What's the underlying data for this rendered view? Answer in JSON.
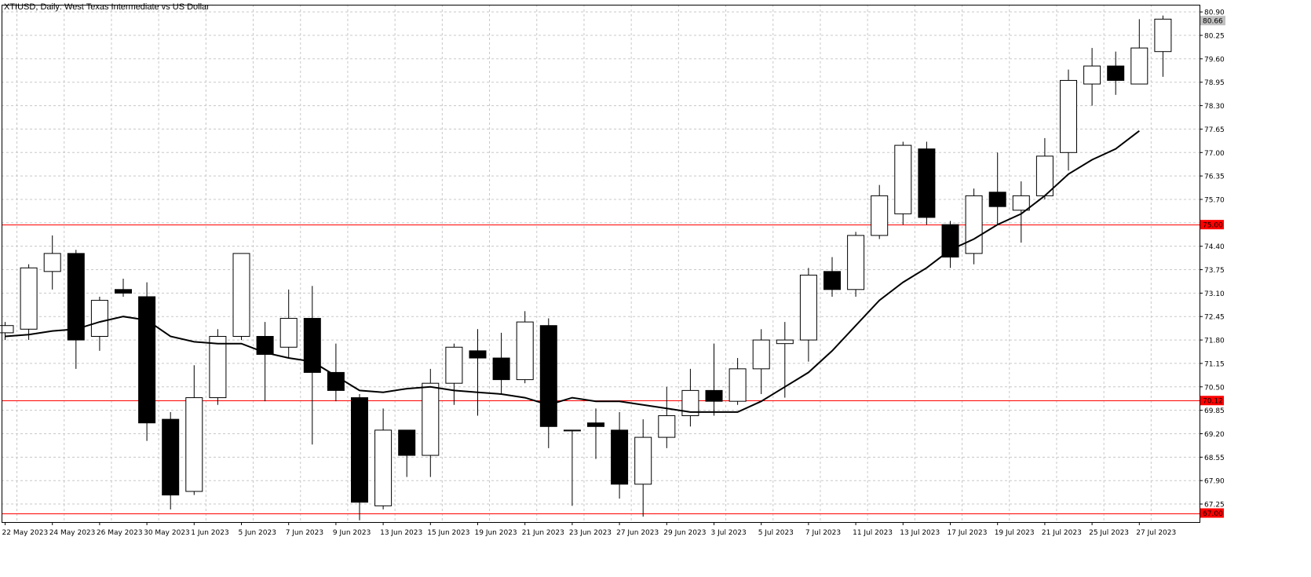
{
  "chart_data": {
    "type": "candlestick",
    "title": "XTIUSD, Daily:  West Texas Intermediate vs US Dollar",
    "price_ticks": [
      "80.90",
      "80.25",
      "79.60",
      "78.95",
      "78.30",
      "77.65",
      "77.00",
      "76.35",
      "75.70",
      "75.05",
      "74.40",
      "73.75",
      "73.10",
      "72.45",
      "71.80",
      "71.15",
      "70.50",
      "69.85",
      "69.20",
      "68.55",
      "67.90",
      "67.25"
    ],
    "ylim": [
      66.75,
      81.1
    ],
    "current_price": "80.66",
    "levels": [
      {
        "value": 75.0,
        "label": "75.00"
      },
      {
        "value": 70.12,
        "label": "70.12"
      },
      {
        "value": 67.0,
        "label": "67.00"
      }
    ],
    "x_labels": [
      "22 May 2023",
      "24 May 2023",
      "26 May 2023",
      "30 May 2023",
      "1 Jun 2023",
      "5 Jun 2023",
      "7 Jun 2023",
      "9 Jun 2023",
      "13 Jun 2023",
      "15 Jun 2023",
      "19 Jun 2023",
      "21 Jun 2023",
      "23 Jun 2023",
      "27 Jun 2023",
      "29 Jun 2023",
      "3 Jul 2023",
      "5 Jul 2023",
      "7 Jul 2023",
      "11 Jul 2023",
      "13 Jul 2023",
      "17 Jul 2023",
      "19 Jul 2023",
      "21 Jul 2023",
      "25 Jul 2023",
      "27 Jul 2023"
    ],
    "candles": [
      {
        "open": 72.0,
        "high": 72.3,
        "low": 71.8,
        "close": 72.2
      },
      {
        "open": 72.1,
        "high": 73.9,
        "low": 71.8,
        "close": 73.8
      },
      {
        "open": 73.7,
        "high": 74.7,
        "low": 73.2,
        "close": 74.2
      },
      {
        "open": 74.2,
        "high": 74.3,
        "low": 71.0,
        "close": 71.8
      },
      {
        "open": 71.9,
        "high": 73.0,
        "low": 71.5,
        "close": 72.9
      },
      {
        "open": 73.2,
        "high": 73.5,
        "low": 73.0,
        "close": 73.1
      },
      {
        "open": 73.0,
        "high": 73.4,
        "low": 69.0,
        "close": 69.5
      },
      {
        "open": 69.6,
        "high": 69.8,
        "low": 67.1,
        "close": 67.5
      },
      {
        "open": 67.6,
        "high": 71.1,
        "low": 67.5,
        "close": 70.2
      },
      {
        "open": 70.2,
        "high": 72.1,
        "low": 70.0,
        "close": 71.9
      },
      {
        "open": 71.9,
        "high": 74.2,
        "low": 71.8,
        "close": 74.2
      },
      {
        "open": 71.9,
        "high": 72.3,
        "low": 70.1,
        "close": 71.4
      },
      {
        "open": 71.6,
        "high": 73.2,
        "low": 71.3,
        "close": 72.4
      },
      {
        "open": 72.4,
        "high": 73.3,
        "low": 68.9,
        "close": 70.9
      },
      {
        "open": 70.9,
        "high": 71.7,
        "low": 70.1,
        "close": 70.4
      },
      {
        "open": 70.2,
        "high": 70.3,
        "low": 66.8,
        "close": 67.3
      },
      {
        "open": 67.2,
        "high": 69.9,
        "low": 67.1,
        "close": 69.3
      },
      {
        "open": 69.3,
        "high": 69.3,
        "low": 68.0,
        "close": 68.6
      },
      {
        "open": 68.6,
        "high": 71.0,
        "low": 68.0,
        "close": 70.6
      },
      {
        "open": 70.6,
        "high": 71.7,
        "low": 70.0,
        "close": 71.6
      },
      {
        "open": 71.5,
        "high": 72.1,
        "low": 69.7,
        "close": 71.3
      },
      {
        "open": 71.3,
        "high": 72.0,
        "low": 70.3,
        "close": 70.7
      },
      {
        "open": 70.7,
        "high": 72.6,
        "low": 70.6,
        "close": 72.3
      },
      {
        "open": 72.2,
        "high": 72.4,
        "low": 68.8,
        "close": 69.4
      },
      {
        "open": 69.3,
        "high": 69.3,
        "low": 67.2,
        "close": 69.3
      },
      {
        "open": 69.5,
        "high": 69.9,
        "low": 68.5,
        "close": 69.4
      },
      {
        "open": 69.3,
        "high": 69.8,
        "low": 67.4,
        "close": 67.8
      },
      {
        "open": 67.8,
        "high": 69.6,
        "low": 66.9,
        "close": 69.1
      },
      {
        "open": 69.1,
        "high": 70.5,
        "low": 68.8,
        "close": 69.7
      },
      {
        "open": 69.7,
        "high": 71.0,
        "low": 69.4,
        "close": 70.4
      },
      {
        "open": 70.4,
        "high": 71.7,
        "low": 69.7,
        "close": 70.1
      },
      {
        "open": 70.1,
        "high": 71.3,
        "low": 70.0,
        "close": 71.0
      },
      {
        "open": 71.0,
        "high": 72.1,
        "low": 70.3,
        "close": 71.8
      },
      {
        "open": 71.7,
        "high": 72.3,
        "low": 70.2,
        "close": 71.8
      },
      {
        "open": 71.8,
        "high": 73.8,
        "low": 71.2,
        "close": 73.6
      },
      {
        "open": 73.7,
        "high": 74.1,
        "low": 73.0,
        "close": 73.2
      },
      {
        "open": 73.2,
        "high": 74.8,
        "low": 73.0,
        "close": 74.7
      },
      {
        "open": 74.7,
        "high": 76.1,
        "low": 74.6,
        "close": 75.8
      },
      {
        "open": 75.3,
        "high": 77.3,
        "low": 75.0,
        "close": 77.2
      },
      {
        "open": 77.1,
        "high": 77.3,
        "low": 75.0,
        "close": 75.2
      },
      {
        "open": 75.0,
        "high": 75.1,
        "low": 73.8,
        "close": 74.1
      },
      {
        "open": 74.2,
        "high": 76.0,
        "low": 73.9,
        "close": 75.8
      },
      {
        "open": 75.9,
        "high": 77.0,
        "low": 75.0,
        "close": 75.5
      },
      {
        "open": 75.4,
        "high": 76.2,
        "low": 74.5,
        "close": 75.8
      },
      {
        "open": 75.8,
        "high": 77.4,
        "low": 75.7,
        "close": 76.9
      },
      {
        "open": 77.0,
        "high": 79.3,
        "low": 76.5,
        "close": 79.0
      },
      {
        "open": 78.9,
        "high": 79.9,
        "low": 78.3,
        "close": 79.4
      },
      {
        "open": 79.4,
        "high": 79.8,
        "low": 78.6,
        "close": 79.0
      },
      {
        "open": 78.9,
        "high": 80.7,
        "low": 78.9,
        "close": 79.9
      },
      {
        "open": 79.8,
        "high": 80.8,
        "low": 79.1,
        "close": 80.7
      }
    ],
    "moving_average": [
      71.9,
      71.95,
      72.05,
      72.1,
      72.3,
      72.45,
      72.35,
      71.9,
      71.75,
      71.7,
      71.7,
      71.45,
      71.3,
      71.2,
      70.8,
      70.4,
      70.35,
      70.45,
      70.5,
      70.4,
      70.35,
      70.3,
      70.2,
      70.0,
      70.2,
      70.1,
      70.1,
      70.0,
      69.9,
      69.8,
      69.8,
      69.8,
      70.1,
      70.5,
      70.9,
      71.5,
      72.2,
      72.9,
      73.4,
      73.8,
      74.3,
      74.6,
      75.0,
      75.3,
      75.8,
      76.4,
      76.8,
      77.1,
      77.6
    ],
    "grid": true
  }
}
